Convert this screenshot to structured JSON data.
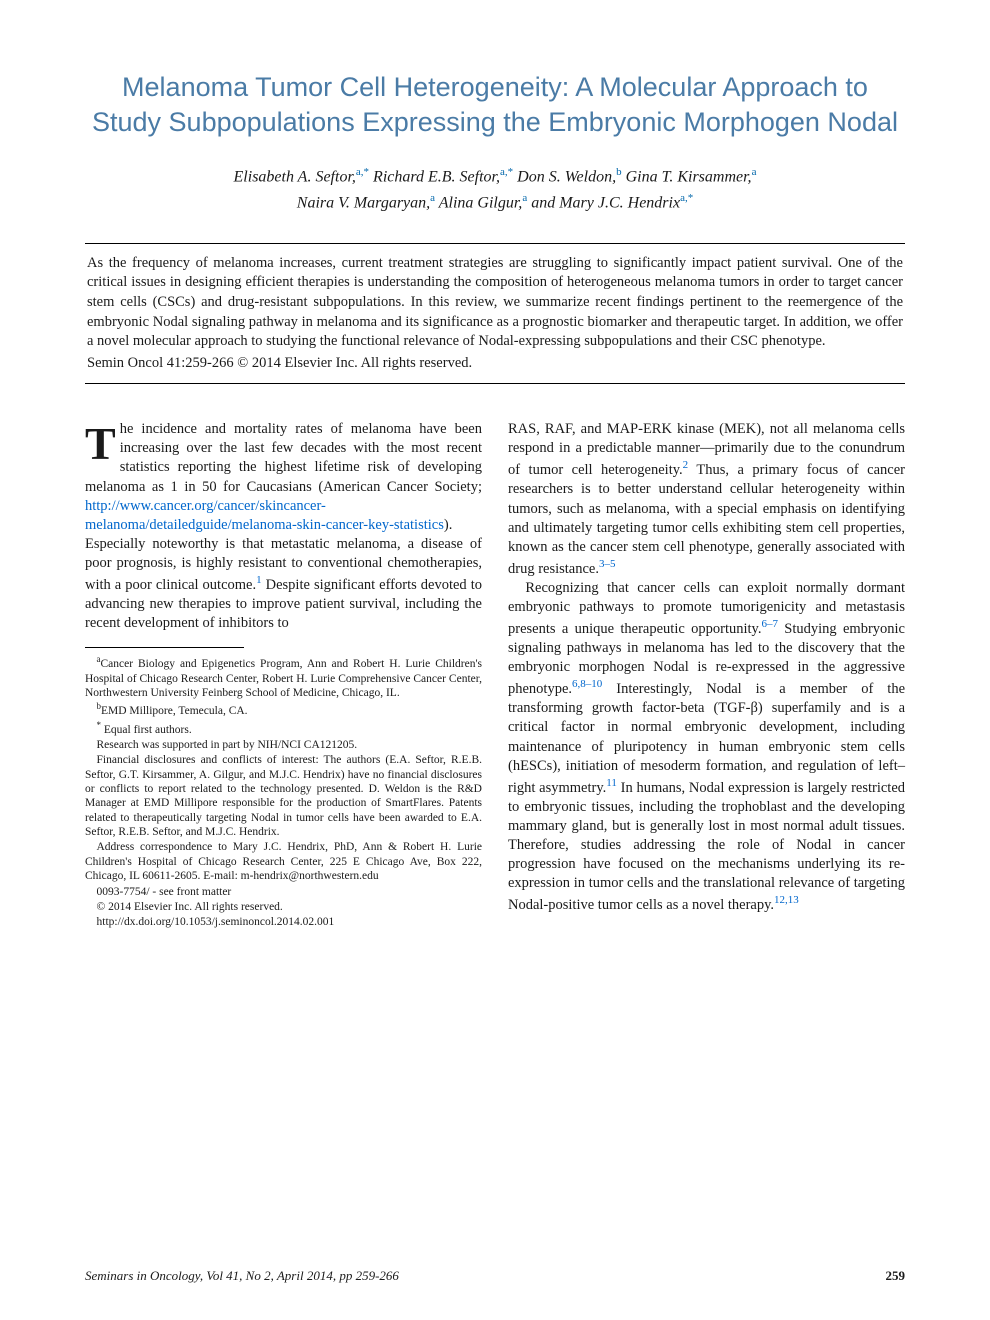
{
  "title": "Melanoma Tumor Cell Heterogeneity: A Molecular Approach to Study Subpopulations Expressing the Embryonic Morphogen Nodal",
  "authors_line1": "Elisabeth A. Seftor,",
  "aff1a": "a,",
  "star1": "*",
  "a1_2": " Richard E.B. Seftor,",
  "aff1b": "a,",
  "star2": "*",
  "a1_3": " Don S. Weldon,",
  "aff1c": "b",
  "a1_4": " Gina T. Kirsammer,",
  "aff1d": "a",
  "authors_line2_1": "Naira V. Margaryan,",
  "aff2a": "a",
  "a2_2": " Alina Gilgur,",
  "aff2b": "a",
  "a2_3": " and Mary J.C. Hendrix",
  "aff2c": "a,",
  "star3": "*",
  "abstract_text": "As the frequency of melanoma increases, current treatment strategies are struggling to significantly impact patient survival. One of the critical issues in designing efficient therapies is understanding the composition of heterogeneous melanoma tumors in order to target cancer stem cells (CSCs) and drug-resistant subpopulations. In this review, we summarize recent findings pertinent to the reemergence of the embryonic Nodal signaling pathway in melanoma and its significance as a prognostic biomarker and therapeutic target. In addition, we offer a novel molecular approach to studying the functional relevance of Nodal-expressing subpopulations and their CSC phenotype.",
  "abstract_copyright": "Semin Oncol 41:259-266 © 2014 Elsevier Inc. All rights reserved.",
  "body": {
    "p1a": "The incidence and mortality rates of melanoma have been increasing over the last few decades with the most recent statistics reporting the highest lifetime risk of developing melanoma as 1 in 50 for Caucasians (American Cancer Society; ",
    "p1_link": "http://www.cancer.org/cancer/skincancer-melanoma/detailedguide/melanoma-skin-cancer-key-statistics",
    "p1b": "). Especially noteworthy is that metastatic melanoma, a disease of poor prognosis, is highly resistant to conventional chemotherapies, with a poor clinical outcome.",
    "p1_ref1": "1",
    "p1c": " Despite significant efforts devoted to advancing new therapies to improve patient survival, including the recent development of inhibitors to ",
    "p2a": "RAS, RAF, and MAP-ERK kinase (MEK), not all melanoma cells respond in a predictable manner—primarily due to the conundrum of tumor cell heterogeneity.",
    "p2_ref2": "2",
    "p2b": " Thus, a primary focus of cancer researchers is to better understand cellular heterogeneity within tumors, such as melanoma, with a special emphasis on identifying and ultimately targeting tumor cells exhibiting stem cell properties, known as the cancer stem cell phenotype, generally associated with drug resistance.",
    "p2_ref3": "3–5",
    "p3a": "Recognizing that cancer cells can exploit normally dormant embryonic pathways to promote tumorigenicity and metastasis presents a unique therapeutic opportunity.",
    "p3_ref6": "6–7",
    "p3b": " Studying embryonic signaling pathways in melanoma has led to the discovery that the embryonic morphogen Nodal is re-expressed in the aggressive phenotype.",
    "p3_ref8": "6,8–10",
    "p3c": " Interestingly, Nodal is a member of the transforming growth factor-beta (TGF-β) superfamily and is a critical factor in normal embryonic development, including maintenance of pluripotency in human embryonic stem cells (hESCs), initiation of mesoderm formation, and regulation of left–right asymmetry.",
    "p3_ref11": "11",
    "p3d": " In humans, Nodal expression is largely restricted to embryonic tissues, including the trophoblast and the developing mammary gland, but is generally lost in most normal adult tissues. Therefore, studies addressing the role of Nodal in cancer progression have focused on the mechanisms underlying its re-expression in tumor cells and the translational relevance of targeting Nodal-positive tumor cells as a novel therapy.",
    "p3_ref12": "12,13"
  },
  "footnotes": {
    "fa": "Cancer Biology and Epigenetics Program, Ann and Robert H. Lurie Children's Hospital of Chicago Research Center, Robert H. Lurie Comprehensive Cancer Center, Northwestern University Feinberg School of Medicine, Chicago, IL.",
    "fb": "EMD Millipore, Temecula, CA.",
    "fstar": "Equal first authors.",
    "funding": "Research was supported in part by NIH/NCI CA121205.",
    "coi": "Financial disclosures and conflicts of interest: The authors (E.A. Seftor, R.E.B. Seftor, G.T. Kirsammer, A. Gilgur, and M.J.C. Hendrix) have no financial disclosures or conflicts to report related to the technology presented. D. Weldon is the R&D Manager at EMD Millipore responsible for the production of SmartFlares. Patents related to therapeutically targeting Nodal in tumor cells have been awarded to E.A. Seftor, R.E.B. Seftor, and M.J.C. Hendrix.",
    "corr": "Address correspondence to Mary J.C. Hendrix, PhD, Ann & Robert H. Lurie Children's Hospital of Chicago Research Center, 225 E Chicago Ave, Box 222, Chicago, IL 60611-2605. E-mail: m-hendrix@northwestern.edu",
    "issn": "0093-7754/ - see front matter",
    "rights": "© 2014 Elsevier Inc. All rights reserved.",
    "doi": "http://dx.doi.org/10.1053/j.seminoncol.2014.02.001"
  },
  "footer": {
    "citation": "Seminars in Oncology, Vol 41, No 2, April 2014, pp 259-266",
    "page": "259"
  },
  "colors": {
    "title": "#4a7ba6",
    "link": "#0066cc",
    "text": "#1a1a1a",
    "background": "#ffffff"
  },
  "typography": {
    "title_fontsize": 27,
    "body_fontsize": 14.5,
    "footnote_fontsize": 11.5,
    "title_family": "Arial",
    "body_family": "Times New Roman"
  }
}
